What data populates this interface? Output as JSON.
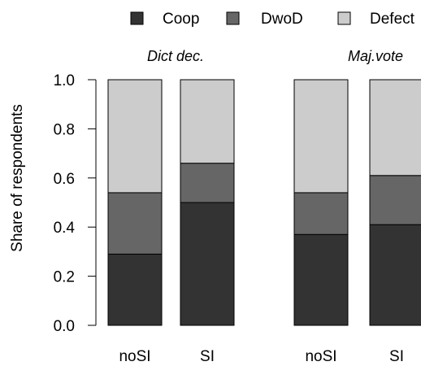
{
  "chart_data": {
    "type": "bar",
    "stacked": true,
    "ylabel": "Share of respondents",
    "ylim": [
      0,
      1
    ],
    "yticks": [
      "0.0",
      "0.2",
      "0.4",
      "0.6",
      "0.8",
      "1.0"
    ],
    "legend": {
      "placement": "top",
      "entries": [
        {
          "name": "Coop",
          "color": "#333333"
        },
        {
          "name": "DwoD",
          "color": "#666666"
        },
        {
          "name": "Defect",
          "color": "#cccccc"
        }
      ]
    },
    "panels": [
      {
        "title": "Dict dec.",
        "categories": [
          "noSI",
          "SI"
        ],
        "series": [
          {
            "name": "Coop",
            "values": [
              0.29,
              0.5
            ]
          },
          {
            "name": "DwoD",
            "values": [
              0.25,
              0.16
            ]
          },
          {
            "name": "Defect",
            "values": [
              0.46,
              0.34
            ]
          }
        ]
      },
      {
        "title": "Maj.vote",
        "categories": [
          "noSI",
          "SI"
        ],
        "series": [
          {
            "name": "Coop",
            "values": [
              0.37,
              0.41
            ]
          },
          {
            "name": "DwoD",
            "values": [
              0.17,
              0.2
            ]
          },
          {
            "name": "Defect",
            "values": [
              0.46,
              0.39
            ]
          }
        ]
      }
    ]
  }
}
